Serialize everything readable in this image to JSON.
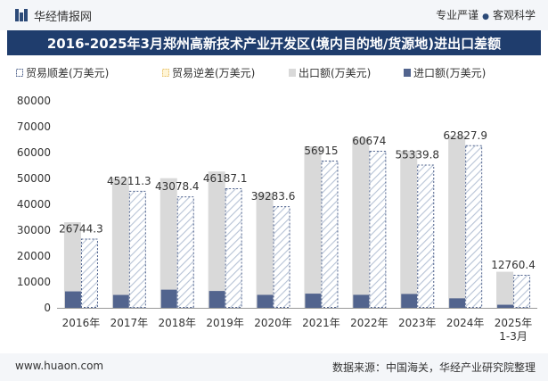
{
  "header": {
    "brand": "华经情报网",
    "tagline_left": "专业严谨",
    "tagline_right": "客观科学"
  },
  "title": "2016-2025年3月郑州高新技术产业开发区(境内目的地/货源地)进出口差额",
  "footer": {
    "website": "www.huaon.com",
    "source": "数据来源：中国海关，华经产业研究院整理"
  },
  "colors": {
    "export": "#d9d9d9",
    "import": "#52648e",
    "surplus_stripe": "#b7c3d6",
    "header_bg": "#1f3d6d"
  },
  "chart_data": {
    "type": "bar",
    "title": "2016-2025年3月郑州高新技术产业开发区(境内目的地/货源地)进出口差额",
    "categories": [
      "2016年",
      "2017年",
      "2018年",
      "2019年",
      "2020年",
      "2021年",
      "2022年",
      "2023年",
      "2024年",
      "2025年\n1-3月"
    ],
    "ylim": [
      0,
      80000
    ],
    "yticks": [
      0,
      10000,
      20000,
      30000,
      40000,
      50000,
      60000,
      70000,
      80000
    ],
    "legend": [
      "贸易顺差(万美元)",
      "贸易逆差(万美元)",
      "出口额(万美元)",
      "进口额(万美元)"
    ],
    "series": [
      {
        "name": "出口额(万美元)",
        "values": [
          33100,
          50200,
          50100,
          52700,
          44300,
          62400,
          65700,
          60700,
          66500,
          13950
        ]
      },
      {
        "name": "进口额(万美元)",
        "values": [
          6355.7,
          4988.7,
          7021.6,
          6512.9,
          5016.4,
          5485,
          5026,
          5361.2,
          3672.1,
          1189.6
        ]
      },
      {
        "name": "贸易顺差(万美元)",
        "values": [
          26744.3,
          45211.3,
          43078.4,
          46187.1,
          39283.6,
          56915,
          60674,
          55339.8,
          62827.9,
          12760.4
        ]
      },
      {
        "name": "贸易逆差(万美元)",
        "values": [
          0,
          0,
          0,
          0,
          0,
          0,
          0,
          0,
          0,
          0
        ]
      }
    ],
    "data_labels": [
      "26744.3",
      "45211.3",
      "43078.4",
      "46187.1",
      "39283.6",
      "56915",
      "60674",
      "55339.8",
      "62827.9",
      "12760.4"
    ]
  }
}
